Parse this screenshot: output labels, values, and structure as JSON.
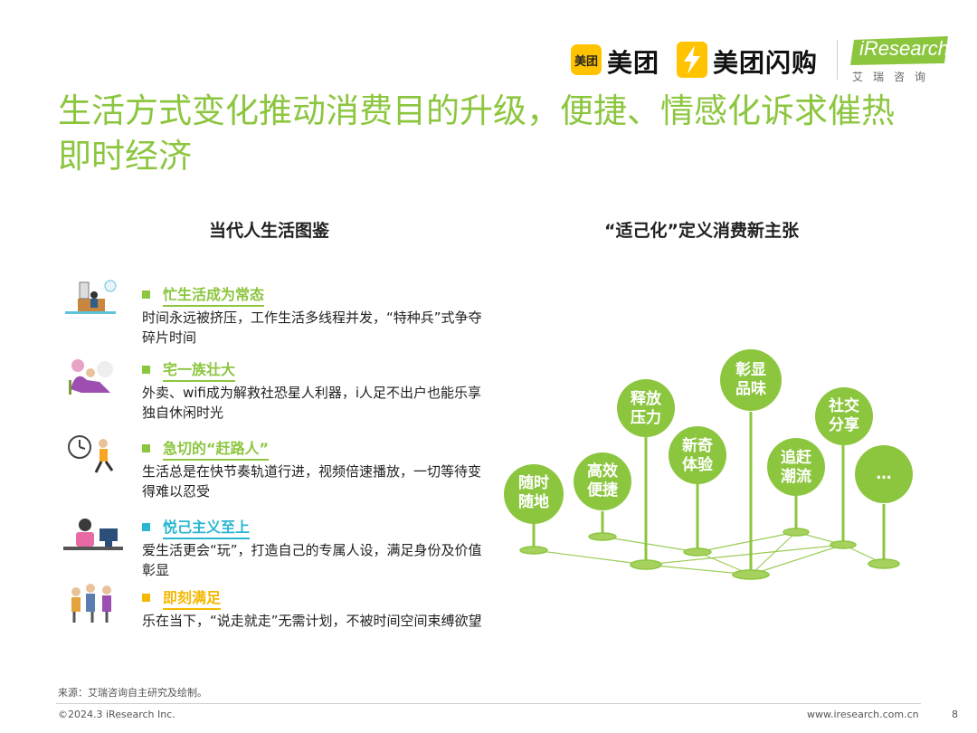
{
  "header": {
    "meituan_badge": "美团",
    "meituan_name": "美团",
    "shangou_name": "美团闪购",
    "iresearch_name": "iResearch",
    "iresearch_sub": "艾瑞咨询"
  },
  "title": "生活方式变化推动消费目的升级，便捷、情感化诉求催热即时经济",
  "left": {
    "heading": "当代人生活图鉴",
    "items": [
      {
        "label": "忙生活成为常态",
        "desc": "时间永远被挤压，工作生活多线程并发，“特种兵”式争夺碎片时间",
        "color": "#8CC63F"
      },
      {
        "label": "宅一族壮大",
        "desc": "外卖、wifi成为解救社恐星人利器，i人足不出户也能乐享独自休闲时光",
        "color": "#8CC63F"
      },
      {
        "label": "急切的“赶路人”",
        "desc": "生活总是在快节奏轨道行进，视频倍速播放，一切等待变得难以忍受",
        "color": "#8CC63F"
      },
      {
        "label": "悦己主义至上",
        "desc": "爱生活更会“玩”，打造自己的专属人设，满足身份及价值彰显",
        "color": "#29B6D1"
      },
      {
        "label": "即刻满足",
        "desc": "乐在当下，“说走就走”无需计划，不被时间空间束缚欲望",
        "color": "#F5B800"
      }
    ]
  },
  "right": {
    "heading": "“适己化”定义消费新主张",
    "nodes": [
      {
        "line1": "随时",
        "line2": "随地"
      },
      {
        "line1": "高效",
        "line2": "便捷"
      },
      {
        "line1": "释放",
        "line2": "压力"
      },
      {
        "line1": "新奇",
        "line2": "体验"
      },
      {
        "line1": "彰显",
        "line2": "品味"
      },
      {
        "line1": "追赶",
        "line2": "潮流"
      },
      {
        "line1": "社交",
        "line2": "分享"
      },
      {
        "line1": "…",
        "line2": ""
      }
    ],
    "accent": "#8CC63F"
  },
  "footer": {
    "source": "来源：艾瑞咨询自主研究及绘制。",
    "copyright": "©2024.3 iResearch Inc.",
    "website": "www.iresearch.com.cn",
    "page": "8"
  }
}
